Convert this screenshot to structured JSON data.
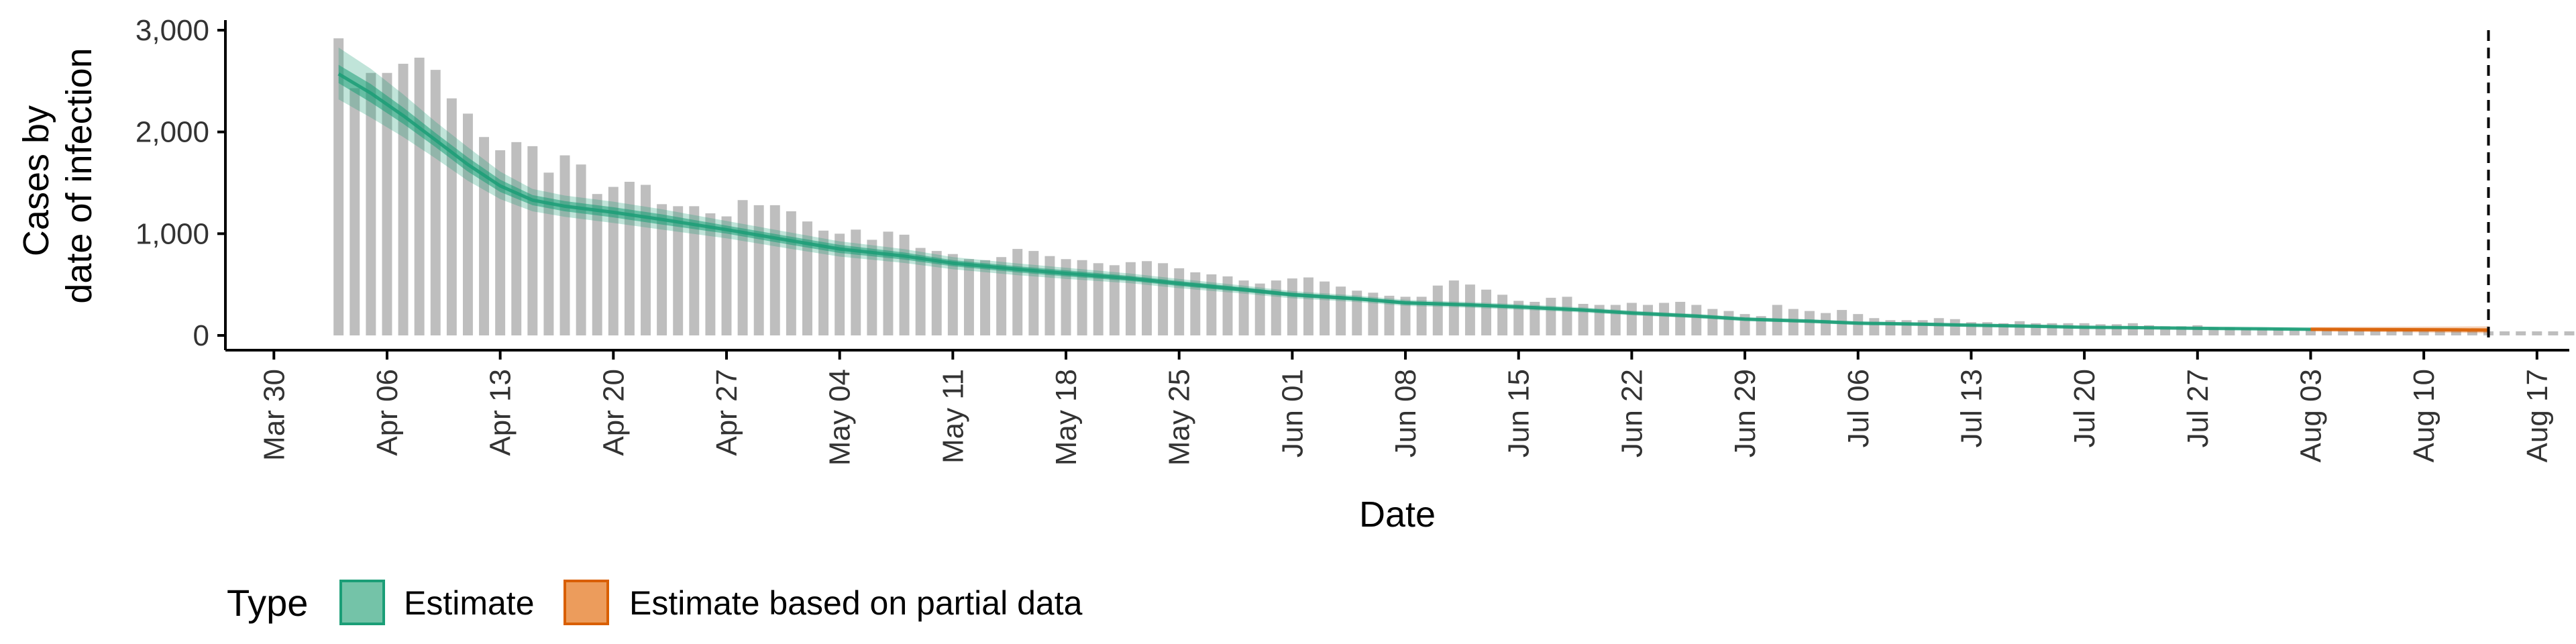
{
  "chart_data": {
    "type": "bar",
    "xlabel": "Date",
    "ylabel_lines": [
      "Cases by",
      "date of infection"
    ],
    "ylim": [
      0,
      3000
    ],
    "y_ticks": [
      0,
      1000,
      2000,
      3000
    ],
    "y_tick_labels": [
      "0",
      "1,000",
      "2,000",
      "3,000"
    ],
    "x_range": [
      "2020-03-27",
      "2020-08-19"
    ],
    "x_ticks": [
      "2020-03-30",
      "2020-04-06",
      "2020-04-13",
      "2020-04-20",
      "2020-04-27",
      "2020-05-04",
      "2020-05-11",
      "2020-05-18",
      "2020-05-25",
      "2020-06-01",
      "2020-06-08",
      "2020-06-15",
      "2020-06-22",
      "2020-06-29",
      "2020-07-06",
      "2020-07-13",
      "2020-07-20",
      "2020-07-27",
      "2020-08-03",
      "2020-08-10",
      "2020-08-17"
    ],
    "x_tick_labels": [
      "Mar 30",
      "Apr 06",
      "Apr 13",
      "Apr 20",
      "Apr 27",
      "May 04",
      "May 11",
      "May 18",
      "May 25",
      "Jun 01",
      "Jun 08",
      "Jun 15",
      "Jun 22",
      "Jun 29",
      "Jul 06",
      "Jul 13",
      "Jul 20",
      "Jul 27",
      "Aug 03",
      "Aug 10",
      "Aug 17"
    ],
    "bars": {
      "start_date": "2020-04-03",
      "values": [
        2920,
        2430,
        2580,
        2580,
        2670,
        2730,
        2610,
        2330,
        2180,
        1950,
        1820,
        1900,
        1860,
        1600,
        1770,
        1680,
        1390,
        1460,
        1510,
        1480,
        1290,
        1270,
        1270,
        1200,
        1170,
        1330,
        1280,
        1280,
        1220,
        1120,
        1030,
        1000,
        1040,
        940,
        1020,
        990,
        860,
        830,
        800,
        750,
        740,
        770,
        850,
        830,
        780,
        750,
        740,
        710,
        690,
        720,
        730,
        710,
        660,
        620,
        600,
        580,
        540,
        510,
        540,
        560,
        570,
        530,
        480,
        440,
        420,
        390,
        380,
        380,
        490,
        540,
        500,
        450,
        400,
        340,
        330,
        370,
        380,
        310,
        300,
        300,
        320,
        300,
        320,
        330,
        300,
        260,
        240,
        210,
        190,
        300,
        260,
        240,
        220,
        250,
        210,
        170,
        150,
        150,
        150,
        170,
        160,
        130,
        130,
        120,
        140,
        120,
        120,
        120,
        120,
        110,
        110,
        120,
        100,
        90,
        90,
        100,
        80,
        80,
        70,
        70,
        70,
        60,
        60,
        60,
        60,
        50,
        50,
        50,
        50,
        50,
        40,
        40,
        40,
        40,
        40,
        40,
        40,
        40,
        40,
        30
      ]
    },
    "estimate": {
      "name": "Estimate",
      "color": "#1b9e77",
      "dates": [
        "2020-04-03",
        "2020-04-05",
        "2020-04-07",
        "2020-04-09",
        "2020-04-11",
        "2020-04-13",
        "2020-04-15",
        "2020-04-17",
        "2020-04-20",
        "2020-04-23",
        "2020-04-27",
        "2020-05-01",
        "2020-05-04",
        "2020-05-08",
        "2020-05-11",
        "2020-05-15",
        "2020-05-18",
        "2020-05-22",
        "2020-05-25",
        "2020-05-29",
        "2020-06-01",
        "2020-06-05",
        "2020-06-08",
        "2020-06-12",
        "2020-06-15",
        "2020-06-19",
        "2020-06-22",
        "2020-06-26",
        "2020-06-29",
        "2020-07-03",
        "2020-07-06",
        "2020-07-10",
        "2020-07-13",
        "2020-07-17",
        "2020-07-20",
        "2020-07-24",
        "2020-07-27",
        "2020-07-31",
        "2020-08-03"
      ],
      "median": [
        2570,
        2380,
        2160,
        1920,
        1680,
        1470,
        1330,
        1270,
        1210,
        1140,
        1040,
        930,
        850,
        780,
        710,
        650,
        610,
        560,
        510,
        450,
        400,
        360,
        320,
        300,
        280,
        250,
        220,
        190,
        160,
        140,
        120,
        110,
        100,
        90,
        80,
        75,
        70,
        65,
        60
      ],
      "inner_low": [
        2480,
        2290,
        2080,
        1850,
        1610,
        1410,
        1280,
        1220,
        1160,
        1090,
        1000,
        890,
        810,
        745,
        680,
        620,
        580,
        535,
        485,
        428,
        380,
        342,
        303,
        284,
        265,
        236,
        207,
        178,
        150,
        130,
        111,
        101,
        92,
        82,
        73,
        68,
        63,
        58,
        53
      ],
      "inner_high": [
        2660,
        2470,
        2240,
        1990,
        1750,
        1530,
        1380,
        1320,
        1260,
        1190,
        1080,
        970,
        890,
        815,
        740,
        680,
        640,
        585,
        535,
        472,
        420,
        378,
        337,
        316,
        295,
        264,
        233,
        202,
        170,
        150,
        129,
        119,
        108,
        98,
        87,
        82,
        77,
        72,
        67
      ],
      "outer_low": [
        2320,
        2140,
        1950,
        1740,
        1520,
        1340,
        1220,
        1165,
        1105,
        1040,
        955,
        850,
        775,
        712,
        650,
        592,
        555,
        512,
        464,
        410,
        364,
        328,
        290,
        272,
        253,
        225,
        197,
        169,
        141,
        121,
        102,
        92,
        84,
        74,
        66,
        61,
        56,
        51,
        46
      ],
      "outer_high": [
        2830,
        2620,
        2370,
        2100,
        1850,
        1610,
        1440,
        1375,
        1315,
        1240,
        1125,
        1010,
        925,
        848,
        770,
        708,
        665,
        608,
        556,
        490,
        436,
        392,
        350,
        328,
        307,
        275,
        243,
        211,
        179,
        159,
        138,
        128,
        117,
        106,
        94,
        89,
        84,
        79,
        74
      ]
    },
    "partial_estimate": {
      "name": "Estimate based on partial data",
      "color": "#d95f02",
      "dates": [
        "2020-08-03",
        "2020-08-06",
        "2020-08-09",
        "2020-08-12",
        "2020-08-14"
      ],
      "median": [
        60,
        58,
        56,
        54,
        52
      ],
      "inner_low": [
        50,
        46,
        43,
        40,
        38
      ],
      "inner_high": [
        70,
        70,
        70,
        70,
        70
      ],
      "outer_low": [
        40,
        35,
        30,
        26,
        22
      ],
      "outer_high": [
        82,
        84,
        86,
        88,
        90
      ]
    },
    "vline_date": "2020-08-14",
    "legend": {
      "title": "Type",
      "position": "bottom-left",
      "items": [
        {
          "label": "Estimate",
          "fill": "#74c3a8",
          "stroke": "#1b9e77"
        },
        {
          "label": "Estimate based on partial data",
          "fill": "#ec9c5c",
          "stroke": "#d95f02"
        }
      ]
    },
    "bar_color": "#bebebe",
    "grid": false
  }
}
